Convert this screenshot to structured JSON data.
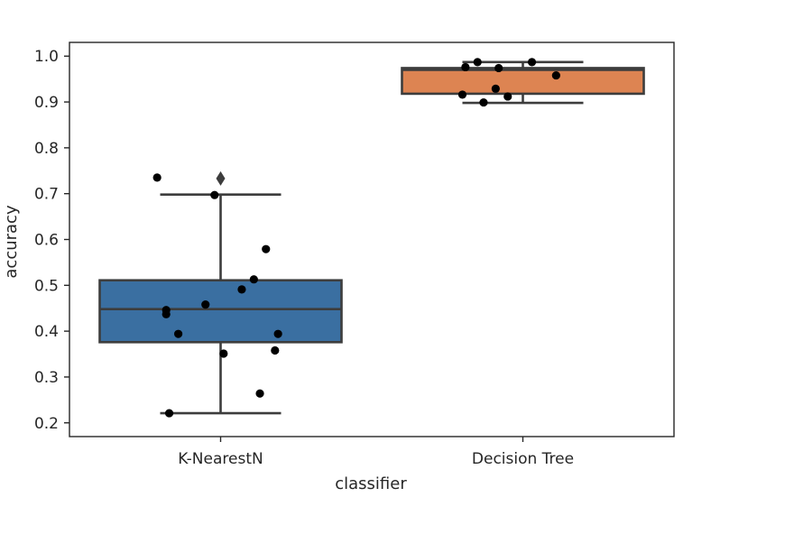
{
  "chart_data": {
    "type": "box",
    "xlabel": "classifier",
    "ylabel": "accuracy",
    "ylim": [
      0.17,
      1.03
    ],
    "yticks": [
      0.2,
      0.3,
      0.4,
      0.5,
      0.6,
      0.7,
      0.8,
      0.9,
      1.0
    ],
    "ytick_labels": [
      "0.2",
      "0.3",
      "0.4",
      "0.5",
      "0.6",
      "0.7",
      "0.8",
      "0.9",
      "1.0"
    ],
    "grid": false,
    "categories": [
      "K-NearestN",
      "Decision Tree"
    ],
    "boxes": [
      {
        "category": "K-NearestN",
        "color": "#3a6fa1",
        "q1": 0.376,
        "median": 0.448,
        "q3": 0.511,
        "whisker_low": 0.221,
        "whisker_high": 0.698,
        "outliers": [
          0.733
        ],
        "points": [
          {
            "offset": -0.21,
            "y": 0.735
          },
          {
            "offset": -0.02,
            "y": 0.697
          },
          {
            "offset": 0.15,
            "y": 0.579
          },
          {
            "offset": 0.11,
            "y": 0.513
          },
          {
            "offset": 0.07,
            "y": 0.491
          },
          {
            "offset": -0.05,
            "y": 0.458
          },
          {
            "offset": -0.18,
            "y": 0.446
          },
          {
            "offset": -0.18,
            "y": 0.437
          },
          {
            "offset": -0.14,
            "y": 0.394
          },
          {
            "offset": 0.19,
            "y": 0.394
          },
          {
            "offset": 0.18,
            "y": 0.358
          },
          {
            "offset": 0.01,
            "y": 0.351
          },
          {
            "offset": 0.13,
            "y": 0.264
          },
          {
            "offset": -0.17,
            "y": 0.221
          }
        ]
      },
      {
        "category": "Decision Tree",
        "color": "#dd8452",
        "q1": 0.918,
        "median": 0.97,
        "q3": 0.974,
        "whisker_low": 0.898,
        "whisker_high": 0.987,
        "outliers": [],
        "points": [
          {
            "offset": -0.15,
            "y": 0.987
          },
          {
            "offset": 0.03,
            "y": 0.987
          },
          {
            "offset": -0.19,
            "y": 0.976
          },
          {
            "offset": -0.08,
            "y": 0.974
          },
          {
            "offset": 0.11,
            "y": 0.958
          },
          {
            "offset": -0.09,
            "y": 0.929
          },
          {
            "offset": -0.2,
            "y": 0.916
          },
          {
            "offset": -0.05,
            "y": 0.912
          },
          {
            "offset": -0.13,
            "y": 0.899
          }
        ]
      }
    ]
  }
}
